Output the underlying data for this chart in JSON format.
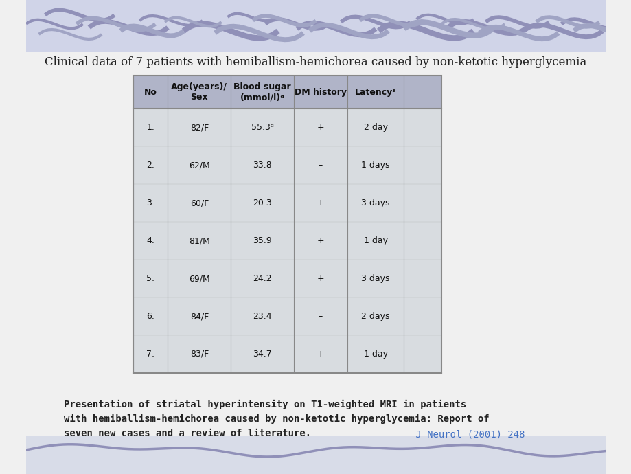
{
  "title": "Clinical data of 7 patients with hemiballism-hemichorea caused by non-ketotic hyperglycemia",
  "table_headers": [
    "No",
    "Age(years)/\nSex",
    "Blood sugar\n(mmol/l)ᵃ",
    "DM history",
    "Latencyᶟ"
  ],
  "table_rows": [
    [
      "1.",
      "82/F",
      "55.3ᵈ",
      "+",
      "2 day"
    ],
    [
      "2.",
      "62/M",
      "33.8",
      "–",
      "1 days"
    ],
    [
      "3.",
      "60/F",
      "20.3",
      "+",
      "3 days"
    ],
    [
      "4.",
      "81/M",
      "35.9",
      "+",
      "1 day"
    ],
    [
      "5.",
      "69/M",
      "24.2",
      "+",
      "3 days"
    ],
    [
      "6.",
      "84/F",
      "23.4",
      "–",
      "2 days"
    ],
    [
      "7.",
      "83/F",
      "34.7",
      "+",
      "1 day"
    ]
  ],
  "body_text_black": "Presentation of striatal hyperintensity on T1-weighted MRI in patients\nwith hemiballism-hemichorea caused by non-ketotic hyperglycemia: Report of\nseven new cases and a review of literature.",
  "body_text_blue": " J Neurol (2001) 248",
  "bg_top_color": "#d0d4e8",
  "bg_main_color": "#f0f0f0",
  "bg_bottom_color": "#d8dce8",
  "table_header_bg": "#b0b4c8",
  "table_body_bg": "#d8dce0",
  "table_border_color": "#888888",
  "title_color": "#222222",
  "body_text_color": "#222222",
  "body_blue_color": "#4472c4",
  "header_font_size": 9,
  "row_font_size": 9,
  "title_font_size": 12
}
